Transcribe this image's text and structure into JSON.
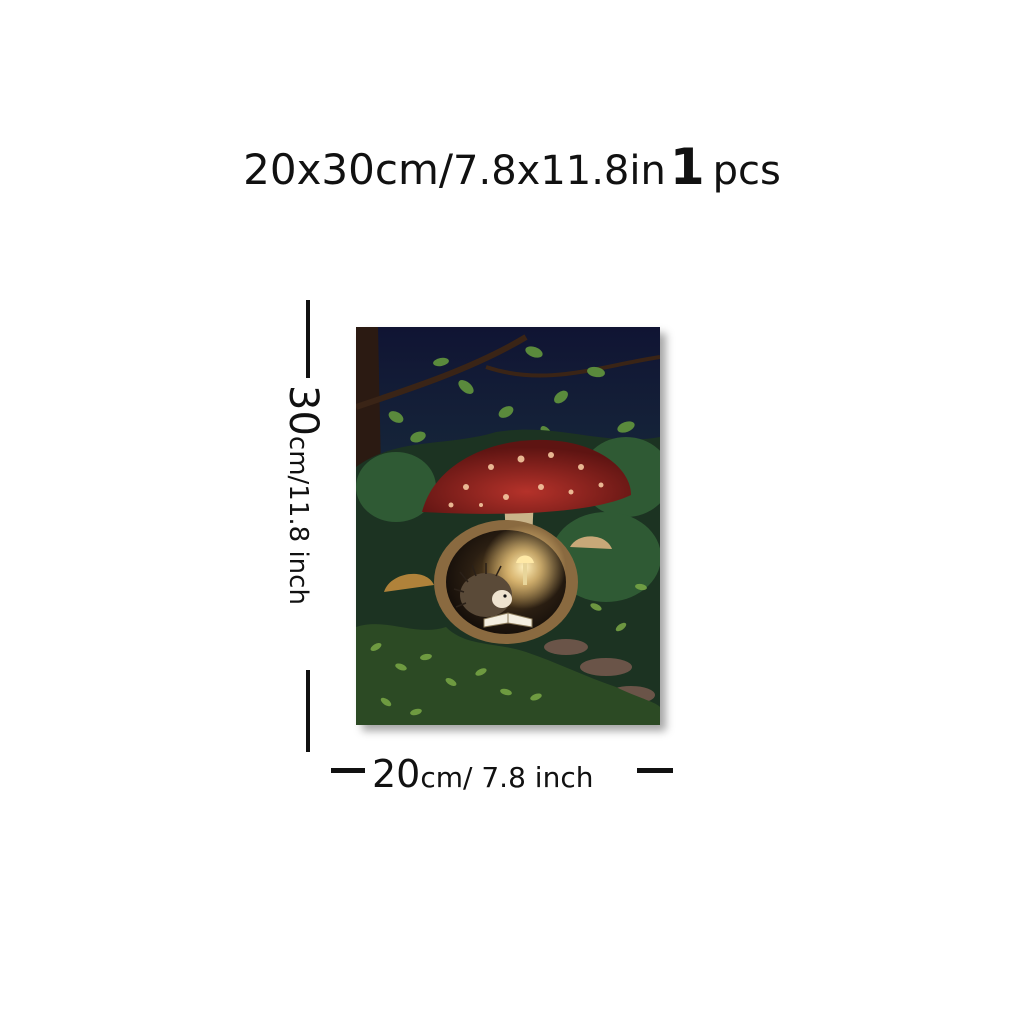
{
  "headline": {
    "size_cm": "20x30cm/",
    "size_in": " 7.8x11.8in",
    "quantity": "1",
    "quantity_unit": "pcs"
  },
  "height_label": {
    "value": "30",
    "unit": "cm/11.8 inch"
  },
  "width_label": {
    "value": "20",
    "unit": "cm/ 7.8 inch"
  },
  "artwork": {
    "subject": "hedgehog reading a book under a red mushroom in a forest",
    "colors": {
      "night_sky": "#14183a",
      "foliage_dark": "#1f3a24",
      "foliage_light": "#6f9b3e",
      "mushroom_cap": "#8e1e1c",
      "glow": "#ffd98a"
    }
  }
}
